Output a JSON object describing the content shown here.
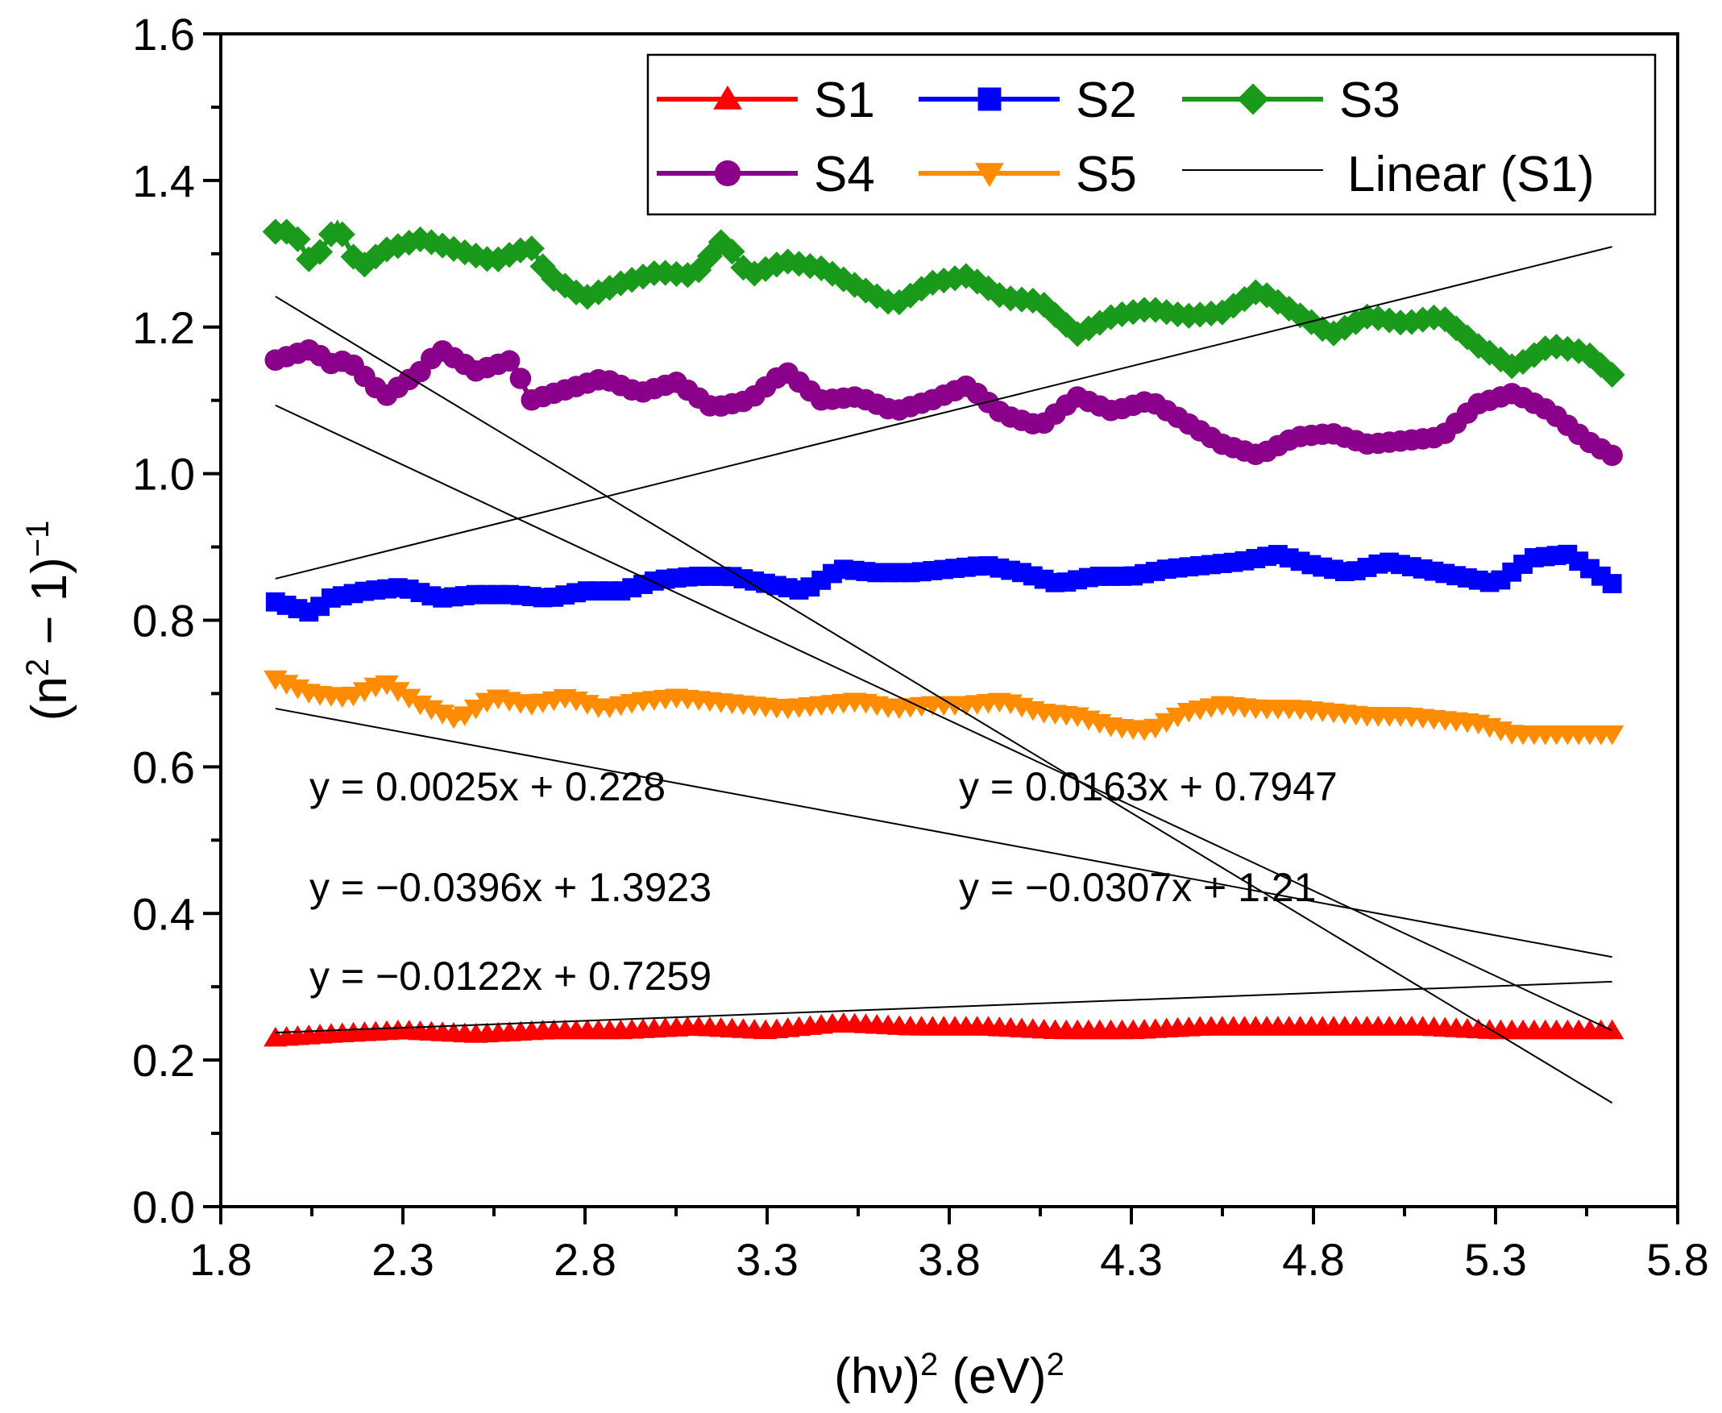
{
  "chart_data": {
    "type": "line",
    "title": "",
    "xlabel": {
      "base": "(hν)",
      "sup1": "2",
      "mid": " (eV)",
      "sup2": "2"
    },
    "ylabel": {
      "pre": "(n",
      "sup1": "2",
      "mid": " − 1)",
      "sup2": "−1"
    },
    "xlim": [
      1.8,
      5.8
    ],
    "ylim": [
      0.0,
      1.6
    ],
    "x_ticks": [
      "1.8",
      "2.3",
      "2.8",
      "3.3",
      "3.8",
      "4.3",
      "4.8",
      "5.3",
      "5.8"
    ],
    "y_ticks": [
      "0.0",
      "0.2",
      "0.4",
      "0.6",
      "0.8",
      "1.0",
      "1.2",
      "1.4",
      "1.6"
    ],
    "x_range": [
      1.95,
      5.62
    ],
    "series": [
      {
        "name": "S1",
        "color": "#ff0000",
        "marker": "triangle-up",
        "points": [
          [
            1.95,
            0.23
          ],
          [
            2.1,
            0.235
          ],
          [
            2.3,
            0.24
          ],
          [
            2.5,
            0.235
          ],
          [
            2.7,
            0.24
          ],
          [
            2.9,
            0.24
          ],
          [
            3.1,
            0.245
          ],
          [
            3.3,
            0.24
          ],
          [
            3.5,
            0.25
          ],
          [
            3.7,
            0.245
          ],
          [
            3.9,
            0.245
          ],
          [
            4.1,
            0.24
          ],
          [
            4.3,
            0.24
          ],
          [
            4.5,
            0.245
          ],
          [
            4.7,
            0.245
          ],
          [
            4.9,
            0.245
          ],
          [
            5.1,
            0.245
          ],
          [
            5.3,
            0.24
          ],
          [
            5.5,
            0.24
          ],
          [
            5.62,
            0.24
          ]
        ]
      },
      {
        "name": "S2",
        "color": "#0000ff",
        "marker": "square",
        "points": [
          [
            1.95,
            0.825
          ],
          [
            2.05,
            0.81
          ],
          [
            2.1,
            0.83
          ],
          [
            2.2,
            0.84
          ],
          [
            2.3,
            0.845
          ],
          [
            2.4,
            0.83
          ],
          [
            2.5,
            0.835
          ],
          [
            2.6,
            0.835
          ],
          [
            2.7,
            0.83
          ],
          [
            2.8,
            0.84
          ],
          [
            2.9,
            0.84
          ],
          [
            3.0,
            0.855
          ],
          [
            3.1,
            0.86
          ],
          [
            3.2,
            0.86
          ],
          [
            3.3,
            0.85
          ],
          [
            3.4,
            0.84
          ],
          [
            3.5,
            0.87
          ],
          [
            3.6,
            0.865
          ],
          [
            3.7,
            0.865
          ],
          [
            3.8,
            0.87
          ],
          [
            3.9,
            0.875
          ],
          [
            4.0,
            0.865
          ],
          [
            4.1,
            0.85
          ],
          [
            4.2,
            0.86
          ],
          [
            4.3,
            0.86
          ],
          [
            4.4,
            0.87
          ],
          [
            4.5,
            0.875
          ],
          [
            4.6,
            0.88
          ],
          [
            4.7,
            0.89
          ],
          [
            4.8,
            0.875
          ],
          [
            4.9,
            0.865
          ],
          [
            5.0,
            0.88
          ],
          [
            5.1,
            0.87
          ],
          [
            5.2,
            0.86
          ],
          [
            5.3,
            0.85
          ],
          [
            5.4,
            0.885
          ],
          [
            5.5,
            0.89
          ],
          [
            5.62,
            0.85
          ]
        ]
      },
      {
        "name": "S3",
        "color": "#1a9a1a",
        "marker": "diamond",
        "points": [
          [
            1.95,
            1.33
          ],
          [
            2.0,
            1.33
          ],
          [
            2.05,
            1.285
          ],
          [
            2.12,
            1.34
          ],
          [
            2.18,
            1.28
          ],
          [
            2.25,
            1.305
          ],
          [
            2.35,
            1.32
          ],
          [
            2.45,
            1.305
          ],
          [
            2.55,
            1.29
          ],
          [
            2.65,
            1.31
          ],
          [
            2.7,
            1.27
          ],
          [
            2.8,
            1.24
          ],
          [
            2.9,
            1.26
          ],
          [
            3.0,
            1.275
          ],
          [
            3.1,
            1.27
          ],
          [
            3.18,
            1.32
          ],
          [
            3.25,
            1.27
          ],
          [
            3.35,
            1.29
          ],
          [
            3.45,
            1.28
          ],
          [
            3.55,
            1.255
          ],
          [
            3.65,
            1.23
          ],
          [
            3.75,
            1.26
          ],
          [
            3.85,
            1.27
          ],
          [
            3.95,
            1.24
          ],
          [
            4.05,
            1.235
          ],
          [
            4.15,
            1.19
          ],
          [
            4.25,
            1.215
          ],
          [
            4.35,
            1.225
          ],
          [
            4.45,
            1.215
          ],
          [
            4.55,
            1.22
          ],
          [
            4.65,
            1.25
          ],
          [
            4.75,
            1.22
          ],
          [
            4.85,
            1.19
          ],
          [
            4.95,
            1.215
          ],
          [
            5.05,
            1.205
          ],
          [
            5.15,
            1.215
          ],
          [
            5.25,
            1.175
          ],
          [
            5.35,
            1.145
          ],
          [
            5.45,
            1.175
          ],
          [
            5.55,
            1.165
          ],
          [
            5.62,
            1.135
          ]
        ]
      },
      {
        "name": "S4",
        "color": "#8b008b",
        "marker": "circle",
        "points": [
          [
            1.95,
            1.155
          ],
          [
            2.05,
            1.17
          ],
          [
            2.1,
            1.15
          ],
          [
            2.15,
            1.155
          ],
          [
            2.25,
            1.105
          ],
          [
            2.35,
            1.14
          ],
          [
            2.4,
            1.17
          ],
          [
            2.5,
            1.14
          ],
          [
            2.6,
            1.155
          ],
          [
            2.65,
            1.1
          ],
          [
            2.75,
            1.115
          ],
          [
            2.85,
            1.13
          ],
          [
            2.95,
            1.11
          ],
          [
            3.05,
            1.125
          ],
          [
            3.15,
            1.09
          ],
          [
            3.25,
            1.1
          ],
          [
            3.35,
            1.14
          ],
          [
            3.45,
            1.1
          ],
          [
            3.55,
            1.105
          ],
          [
            3.65,
            1.085
          ],
          [
            3.75,
            1.1
          ],
          [
            3.85,
            1.12
          ],
          [
            3.95,
            1.08
          ],
          [
            4.05,
            1.065
          ],
          [
            4.15,
            1.105
          ],
          [
            4.25,
            1.085
          ],
          [
            4.35,
            1.1
          ],
          [
            4.45,
            1.07
          ],
          [
            4.55,
            1.04
          ],
          [
            4.65,
            1.025
          ],
          [
            4.75,
            1.05
          ],
          [
            4.85,
            1.055
          ],
          [
            4.95,
            1.04
          ],
          [
            5.05,
            1.045
          ],
          [
            5.15,
            1.05
          ],
          [
            5.25,
            1.095
          ],
          [
            5.35,
            1.11
          ],
          [
            5.45,
            1.085
          ],
          [
            5.55,
            1.045
          ],
          [
            5.62,
            1.025
          ]
        ]
      },
      {
        "name": "S5",
        "color": "#ff8c00",
        "marker": "triangle-down",
        "points": [
          [
            1.95,
            0.72
          ],
          [
            2.05,
            0.7
          ],
          [
            2.15,
            0.695
          ],
          [
            2.25,
            0.715
          ],
          [
            2.35,
            0.685
          ],
          [
            2.45,
            0.665
          ],
          [
            2.55,
            0.695
          ],
          [
            2.65,
            0.685
          ],
          [
            2.75,
            0.695
          ],
          [
            2.85,
            0.68
          ],
          [
            2.95,
            0.69
          ],
          [
            3.05,
            0.695
          ],
          [
            3.15,
            0.69
          ],
          [
            3.25,
            0.685
          ],
          [
            3.35,
            0.68
          ],
          [
            3.45,
            0.685
          ],
          [
            3.55,
            0.69
          ],
          [
            3.65,
            0.68
          ],
          [
            3.75,
            0.685
          ],
          [
            3.85,
            0.685
          ],
          [
            3.95,
            0.69
          ],
          [
            4.05,
            0.675
          ],
          [
            4.15,
            0.67
          ],
          [
            4.25,
            0.655
          ],
          [
            4.35,
            0.65
          ],
          [
            4.45,
            0.675
          ],
          [
            4.55,
            0.685
          ],
          [
            4.65,
            0.68
          ],
          [
            4.75,
            0.68
          ],
          [
            4.85,
            0.675
          ],
          [
            4.95,
            0.67
          ],
          [
            5.05,
            0.67
          ],
          [
            5.15,
            0.665
          ],
          [
            5.25,
            0.66
          ],
          [
            5.35,
            0.645
          ],
          [
            5.45,
            0.645
          ],
          [
            5.55,
            0.645
          ],
          [
            5.62,
            0.645
          ]
        ]
      }
    ],
    "fits": [
      {
        "series": "S1",
        "slope": 0.0025,
        "intercept": 0.228
      },
      {
        "series": "S2",
        "slope": 0.0163,
        "intercept": 0.7947
      },
      {
        "series": "S3",
        "slope": -0.0396,
        "intercept": 1.3923
      },
      {
        "series": "S4",
        "slope": -0.0307,
        "intercept": 1.21
      },
      {
        "series": "S5",
        "slope": -0.0122,
        "intercept": 0.7259
      }
    ],
    "legend": {
      "position": "top-right",
      "entries": [
        {
          "label": "S1",
          "series": "S1"
        },
        {
          "label": "S2",
          "series": "S2"
        },
        {
          "label": "S3",
          "series": "S3"
        },
        {
          "label": "S4",
          "series": "S4"
        },
        {
          "label": "S5",
          "series": "S5"
        },
        {
          "label": "Linear (S1)",
          "series": "linear"
        }
      ]
    },
    "annotations": [
      "y = 0.0025x + 0.228",
      "y = 0.0163x + 0.7947",
      "y = −0.0396x + 1.3923",
      "y = −0.0307x + 1.21",
      "y = −0.0122x + 0.7259"
    ],
    "fit_color": "#000000"
  }
}
